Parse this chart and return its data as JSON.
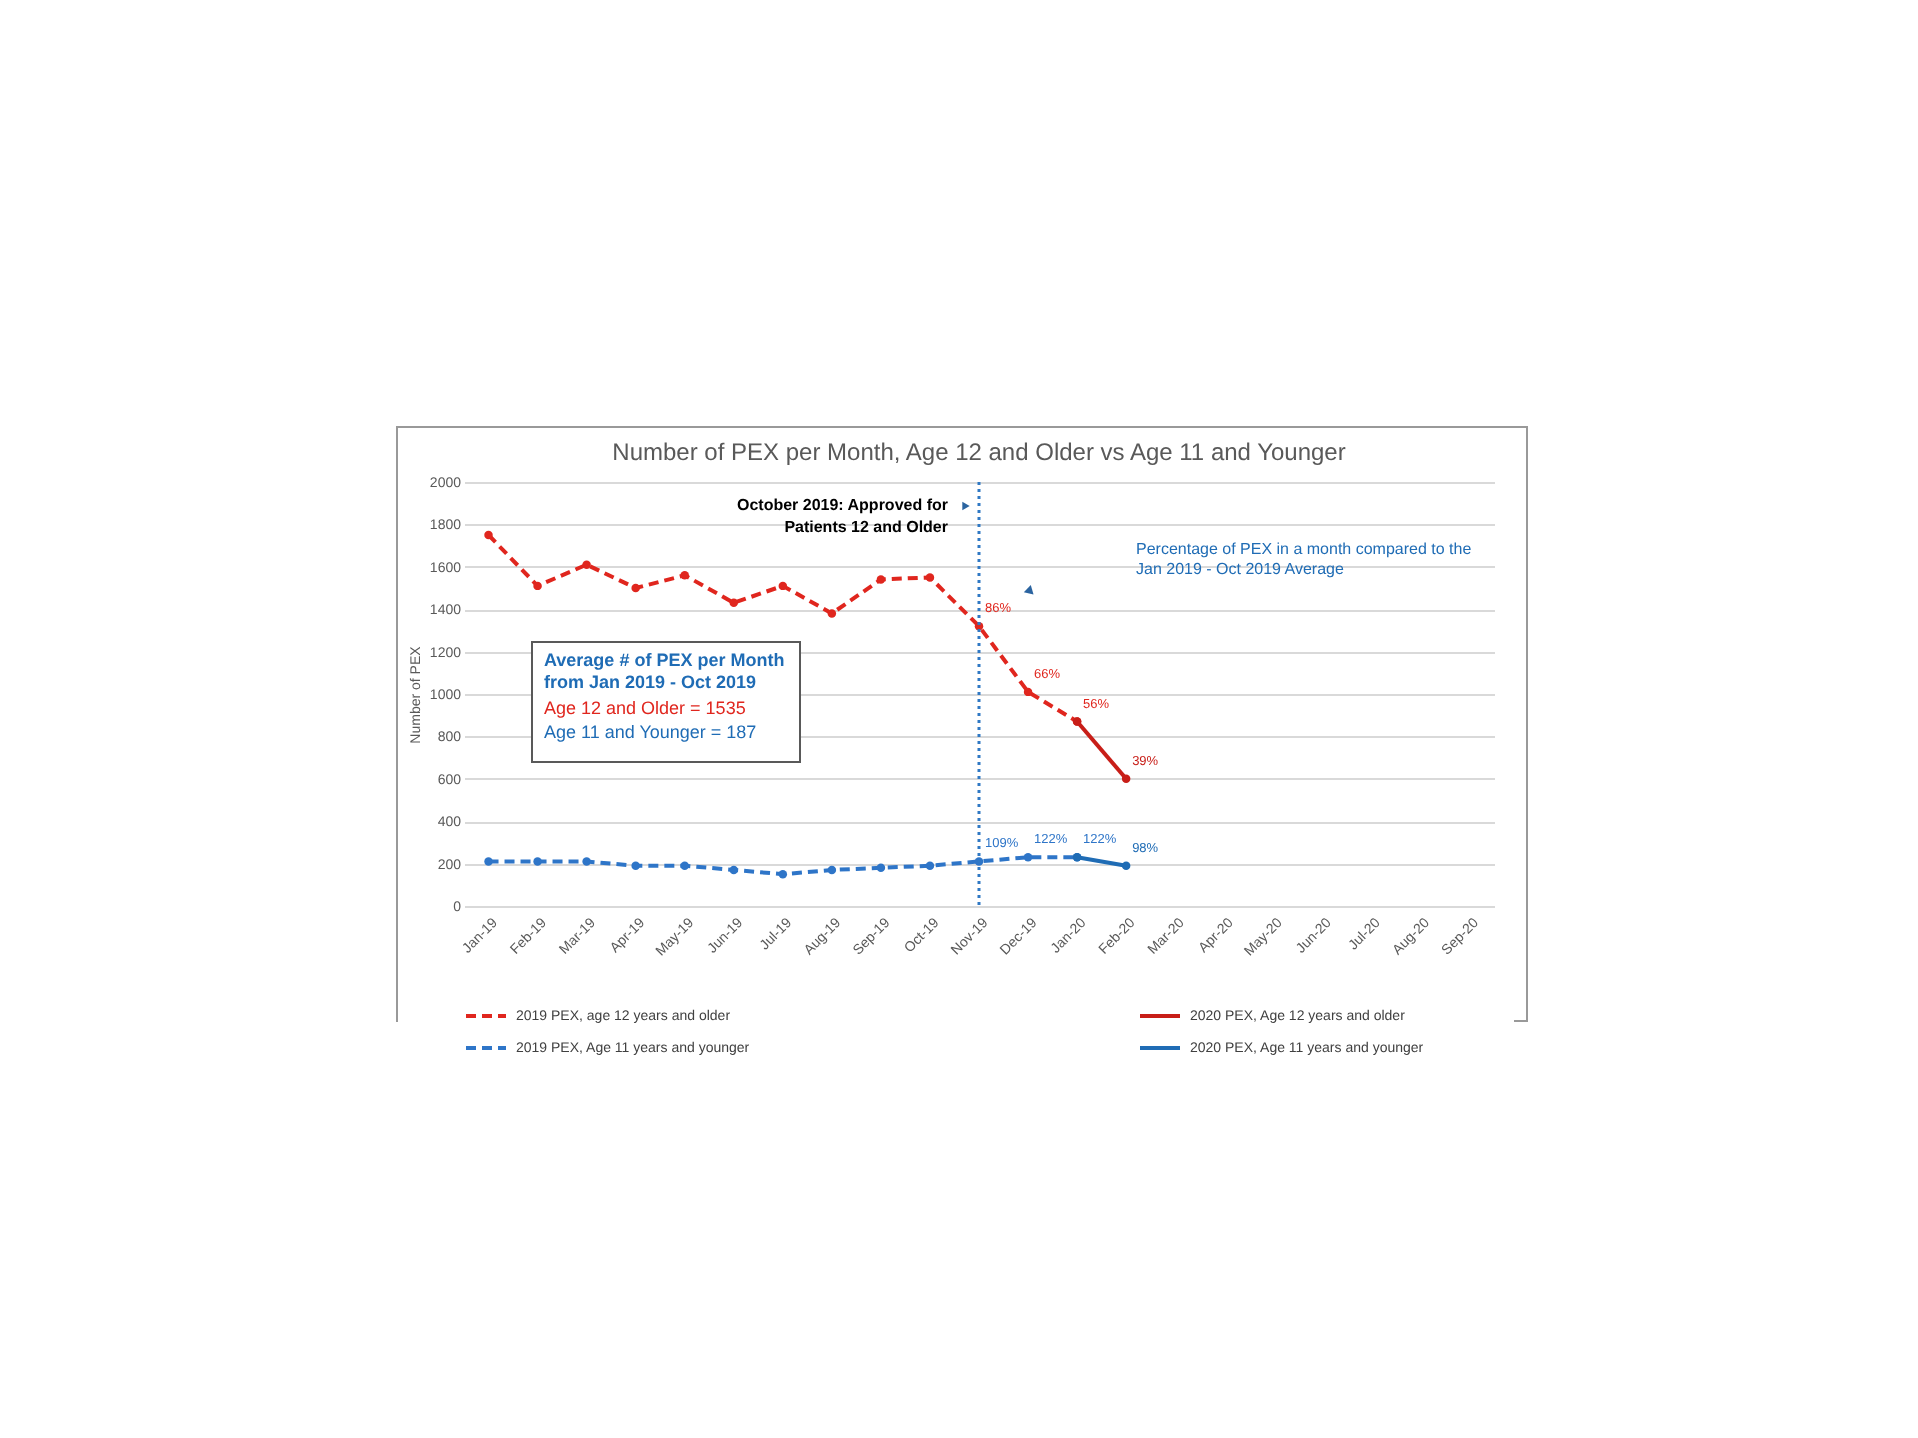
{
  "chart_data": {
    "type": "line",
    "title": "Number of PEX per Month, Age 12 and Older vs Age 11 and Younger",
    "ylabel": "Number of PEX",
    "categories": [
      "Jan-19",
      "Feb-19",
      "Mar-19",
      "Apr-19",
      "May-19",
      "Jun-19",
      "Jul-19",
      "Aug-19",
      "Sep-19",
      "Oct-19",
      "Nov-19",
      "Dec-19",
      "Jan-20",
      "Feb-20",
      "Mar-20",
      "Apr-20",
      "May-20",
      "Jun-20",
      "Jul-20",
      "Aug-20",
      "Sep-20"
    ],
    "series": [
      {
        "name": "2019 PEX, age 12 years and older",
        "color": "#e0261e",
        "line_style": "dashed",
        "values": [
          1750,
          1510,
          1610,
          1500,
          1560,
          1430,
          1510,
          1380,
          1540,
          1550,
          1320,
          1010,
          870,
          null,
          null,
          null,
          null,
          null,
          null,
          null,
          null
        ]
      },
      {
        "name": "2020 PEX, Age 12 years and older",
        "color": "#c81e18",
        "line_style": "solid",
        "values": [
          null,
          null,
          null,
          null,
          null,
          null,
          null,
          null,
          null,
          null,
          null,
          null,
          870,
          600,
          null,
          null,
          null,
          null,
          null,
          null,
          null
        ]
      },
      {
        "name": "2019 PEX, Age 11 years and younger",
        "color": "#2e75c8",
        "line_style": "dashed",
        "values": [
          210,
          210,
          210,
          190,
          190,
          170,
          150,
          170,
          180,
          190,
          210,
          230,
          230,
          null,
          null,
          null,
          null,
          null,
          null,
          null,
          null
        ]
      },
      {
        "name": "2020 PEX, Age 11 years and younger",
        "color": "#1f6cb5",
        "line_style": "solid",
        "values": [
          null,
          null,
          null,
          null,
          null,
          null,
          null,
          null,
          null,
          null,
          null,
          null,
          230,
          190,
          null,
          null,
          null,
          null,
          null,
          null,
          null
        ]
      }
    ],
    "ylim": [
      0,
      2000
    ],
    "yticks": [
      0,
      200,
      400,
      600,
      800,
      1000,
      1200,
      1400,
      1600,
      1800,
      2000
    ],
    "grid": "y",
    "legend": "bottom",
    "marker": "circle",
    "ref_lines": [
      {
        "axis": "x",
        "value": "Nov-19",
        "label": "October 2019: Approved for Patients 12 and Older",
        "color": "#2f78c4",
        "line_style": "dotted"
      }
    ],
    "annotations": [
      "Average # of PEX per Month from Jan 2019 - Oct 2019",
      "Age 12 and Older = 1535",
      "Age 11 and Younger = 187",
      "Percentage of PEX in a month compared to the Jan 2019 - Oct 2019 Average",
      {
        "text": "86%",
        "x": "Nov-19",
        "y": 1320
      },
      {
        "text": "66%",
        "x": "Dec-19",
        "y": 1010
      },
      {
        "text": "56%",
        "x": "Jan-20",
        "y": 870
      },
      {
        "text": "39%",
        "x": "Feb-20",
        "y": 600
      },
      {
        "text": "109%",
        "x": "Nov-19",
        "y": 210
      },
      {
        "text": "122%",
        "x": "Dec-19",
        "y": 230
      },
      {
        "text": "122%",
        "x": "Jan-20",
        "y": 230
      },
      {
        "text": "98%",
        "x": "Feb-20",
        "y": 190
      }
    ]
  }
}
